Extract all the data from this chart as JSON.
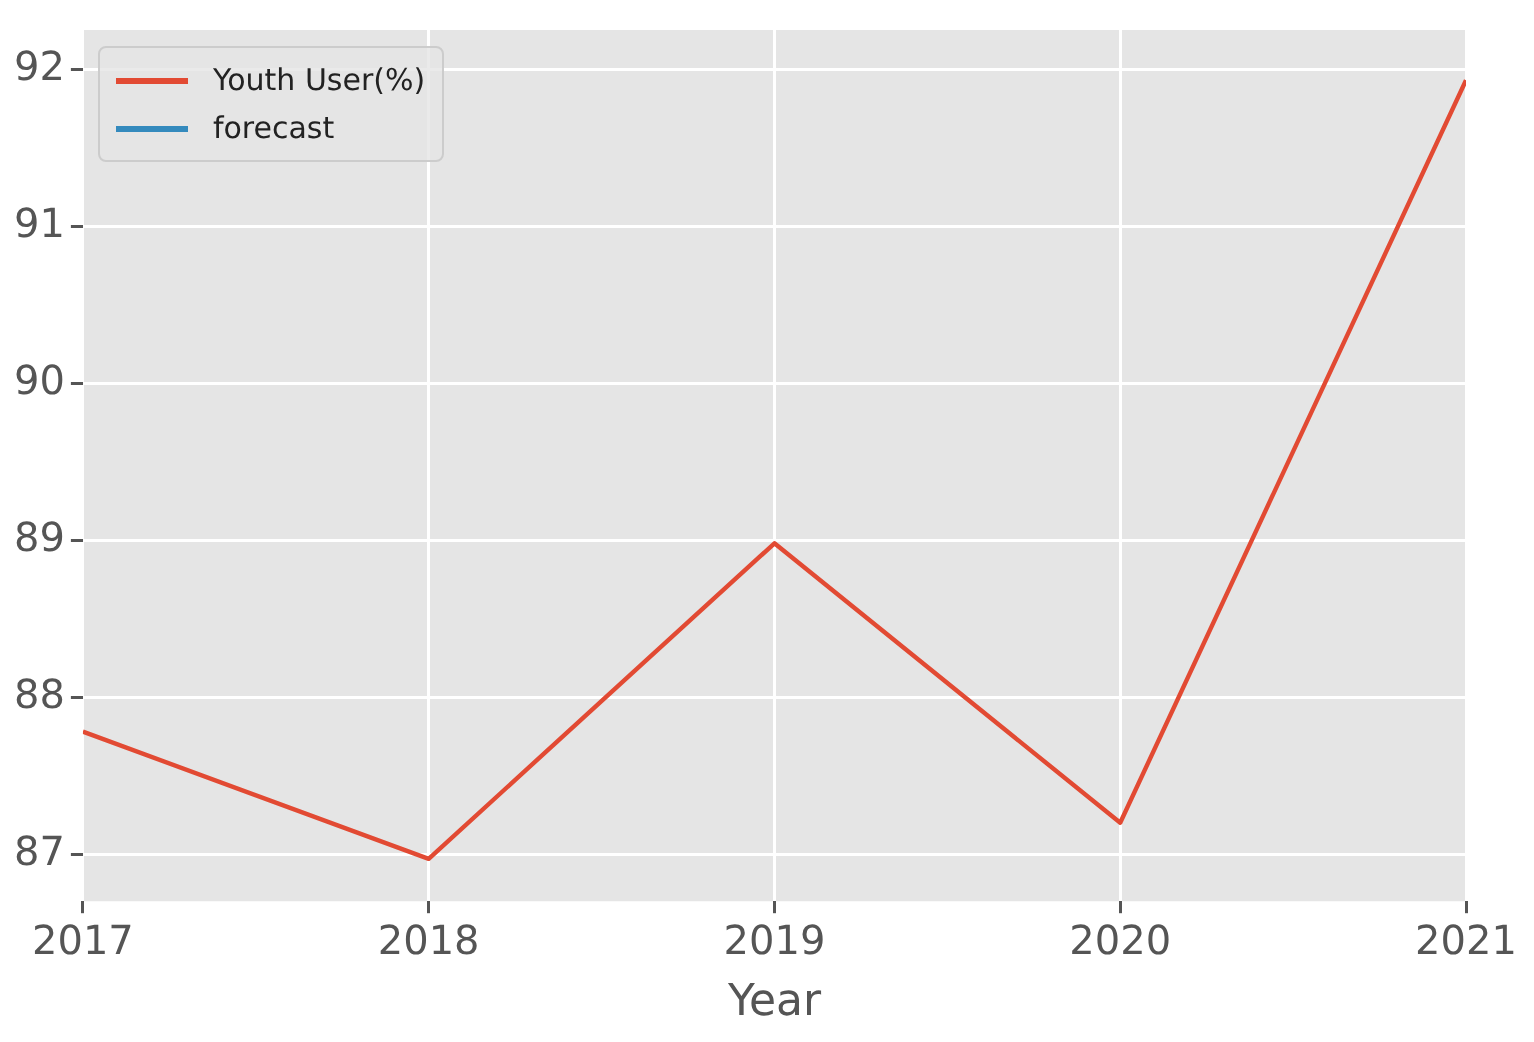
{
  "chart_data": {
    "type": "line",
    "xlabel": "Year",
    "x": [
      2017,
      2018,
      2019,
      2020,
      2021
    ],
    "series": [
      {
        "name": "Youth User(%)",
        "color": "#e24a33",
        "values": [
          87.78,
          86.97,
          88.98,
          87.2,
          91.93
        ]
      },
      {
        "name": "forecast",
        "color": "#348abd",
        "values": [
          null,
          null,
          null,
          null,
          null
        ]
      }
    ],
    "xlim": [
      2017,
      2021
    ],
    "xticks": [
      2017,
      2018,
      2019,
      2020,
      2021
    ],
    "ylim": [
      86.7,
      92.25
    ],
    "yticks": [
      87,
      88,
      89,
      90,
      91,
      92
    ],
    "grid": true,
    "legend": "top left",
    "marker": "none",
    "line_style": "solid"
  }
}
